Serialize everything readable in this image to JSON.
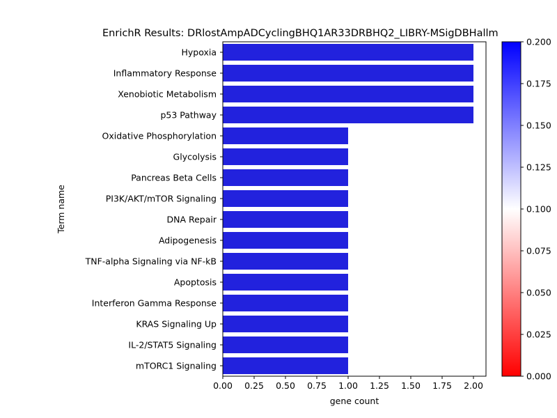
{
  "chart_data": {
    "type": "bar",
    "orientation": "horizontal",
    "title": "EnrichR Results: DRlostAmpADCyclingBHQ1AR33DRBHQ2_LIBRY-MSigDBHallm",
    "xlabel": "gene count",
    "ylabel": "Term name",
    "xlim": [
      0,
      2.1
    ],
    "x_ticks": [
      "0.00",
      "0.25",
      "0.50",
      "0.75",
      "1.00",
      "1.25",
      "1.50",
      "1.75",
      "2.00"
    ],
    "categories": [
      "Hypoxia",
      "Inflammatory Response",
      "Xenobiotic Metabolism",
      "p53 Pathway",
      "Oxidative Phosphorylation",
      "Glycolysis",
      "Pancreas Beta Cells",
      "PI3K/AKT/mTOR  Signaling",
      "DNA Repair",
      "Adipogenesis",
      "TNF-alpha Signaling via NF-kB",
      "Apoptosis",
      "Interferon Gamma Response",
      "KRAS Signaling Up",
      "IL-2/STAT5 Signaling",
      "mTORC1 Signaling"
    ],
    "values": [
      2,
      2,
      2,
      2,
      1,
      1,
      1,
      1,
      1,
      1,
      1,
      1,
      1,
      1,
      1,
      1
    ],
    "bar_color": "#2222dd",
    "colorbar": {
      "range": [
        0,
        0.2
      ],
      "ticks": [
        "0.000",
        "0.025",
        "0.050",
        "0.075",
        "0.100",
        "0.125",
        "0.150",
        "0.175",
        "0.200"
      ],
      "colors": [
        "#ff0000",
        "#ffffff",
        "#0000ff"
      ]
    },
    "grid": false,
    "legend": "none"
  }
}
